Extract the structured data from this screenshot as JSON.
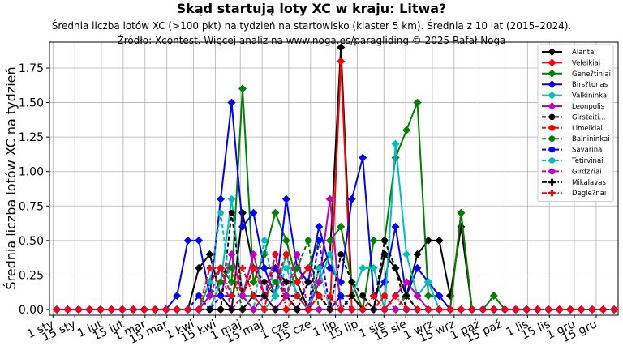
{
  "title": "Skąd startują loty XC w kraju: Litwa?",
  "subtitle_line1": "Średnia liczba lotów XC (>100 pkt) na tydzień na startowisko (klaster 5 km). Średnia z 10 lat (2015–2024).",
  "subtitle_line2": "Źródło: Xcontest. Więcej analiz na www.noga.es/paragliding © 2025 Rafał Noga",
  "chart_data": {
    "type": "line",
    "title": "Skąd startują loty XC w kraju: Litwa?",
    "xlabel": "",
    "ylabel": "Średnia liczba lotów XC na tydzień",
    "ylim": [
      -0.03,
      1.93
    ],
    "yticks": [
      0.0,
      0.25,
      0.5,
      0.75,
      1.0,
      1.25,
      1.5,
      1.75
    ],
    "ytick_labels": [
      "0.00",
      "0.25",
      "0.50",
      "0.75",
      "1.00",
      "1.25",
      "1.50",
      "1.75"
    ],
    "xtick_labels": [
      "1 sty",
      "15 sty",
      "1 lut",
      "15 lut",
      "1 mar",
      "15 mar",
      "1 kwi",
      "15 kwi",
      "1 maj",
      "15 maj",
      "1 cze",
      "15 cze",
      "1 lip",
      "15 lip",
      "1 sie",
      "15 sie",
      "1 wrz",
      "15 wrz",
      "1 paź",
      "15 paź",
      "1 lis",
      "15 lis",
      "1 gru",
      "15 gru"
    ],
    "x": "week 1..52",
    "grid": true,
    "legend_position": "upper right",
    "series": [
      {
        "name": "Alanta",
        "color": "#000000",
        "style": "solid",
        "marker": "diamond",
        "values": [
          0,
          0,
          0,
          0,
          0,
          0,
          0,
          0,
          0,
          0,
          0,
          0,
          0,
          0.3,
          0.4,
          0.1,
          0,
          0.7,
          0.3,
          0.3,
          0.3,
          0.2,
          0.2,
          0,
          0.3,
          0.4,
          1.9,
          0.1,
          0,
          0,
          0.4,
          0.3,
          0.1,
          0.4,
          0.5,
          0.5,
          0.1,
          0.6,
          0,
          0,
          0,
          0,
          0,
          0,
          0,
          0,
          0,
          0,
          0,
          0,
          0,
          0
        ]
      },
      {
        "name": "Veleikiai",
        "color": "#ff0000",
        "style": "solid",
        "marker": "diamond",
        "values": [
          0,
          0,
          0,
          0,
          0,
          0,
          0,
          0,
          0,
          0,
          0,
          0,
          0,
          0,
          0,
          0,
          0,
          0,
          0,
          0,
          0,
          0,
          0,
          0,
          0,
          0,
          1.8,
          0,
          0,
          0,
          0,
          0,
          0,
          0,
          0,
          0,
          0,
          0.7,
          0,
          0,
          0,
          0,
          0,
          0,
          0,
          0,
          0,
          0,
          0,
          0,
          0,
          0
        ]
      },
      {
        "name": "Gene?tiniai",
        "color": "#008000",
        "style": "solid",
        "marker": "diamond",
        "values": [
          0,
          0,
          0,
          0,
          0,
          0,
          0,
          0,
          0,
          0,
          0,
          0,
          0,
          0,
          0.2,
          0.3,
          0.2,
          1.6,
          0.2,
          0.4,
          0.7,
          0.5,
          0.2,
          0.3,
          0.5,
          0.5,
          0.6,
          0.2,
          0,
          0.5,
          0.5,
          1.1,
          1.3,
          1.5,
          0.1,
          0.1,
          0,
          0.7,
          0,
          0,
          0.1,
          0,
          0,
          0,
          0,
          0,
          0,
          0,
          0,
          0,
          0,
          0
        ]
      },
      {
        "name": "Birs?tonas",
        "color": "#0000ff",
        "style": "solid",
        "marker": "diamond",
        "values": [
          0,
          0,
          0,
          0,
          0,
          0,
          0,
          0,
          0,
          0,
          0,
          0.1,
          0.5,
          0.5,
          0.1,
          0.8,
          1.5,
          0.6,
          0.7,
          0.3,
          0.1,
          0.8,
          0.3,
          0.2,
          0.6,
          0.3,
          0.2,
          0.8,
          1.1,
          0.1,
          0.2,
          0.6,
          0.1,
          0.3,
          0.2,
          0.1,
          0,
          0,
          0,
          0,
          0,
          0,
          0,
          0,
          0,
          0,
          0,
          0,
          0,
          0,
          0,
          0
        ]
      },
      {
        "name": "Valkininkai",
        "color": "#00bfbf",
        "style": "solid",
        "marker": "diamond",
        "values": [
          0,
          0,
          0,
          0,
          0,
          0,
          0,
          0,
          0,
          0,
          0,
          0,
          0,
          0,
          0,
          0.2,
          0.8,
          0.1,
          0.1,
          0,
          0.1,
          0.4,
          0.1,
          0,
          0.2,
          0.4,
          0.1,
          0.1,
          0.3,
          0.3,
          0,
          1.2,
          0.4,
          0.1,
          0.2,
          0,
          0,
          0,
          0,
          0,
          0,
          0,
          0,
          0,
          0,
          0,
          0,
          0,
          0,
          0,
          0,
          0
        ]
      },
      {
        "name": "Leonpolis",
        "color": "#bf00bf",
        "style": "solid",
        "marker": "diamond",
        "values": [
          0,
          0,
          0,
          0,
          0,
          0,
          0,
          0,
          0,
          0,
          0,
          0,
          0,
          0,
          0.1,
          0.1,
          0.4,
          0.1,
          0.4,
          0.1,
          0,
          0.1,
          0,
          0,
          0.2,
          0.8,
          0,
          0,
          0,
          0,
          0,
          0.1,
          0.2,
          0.1,
          0,
          0,
          0,
          0,
          0,
          0,
          0,
          0,
          0,
          0,
          0,
          0,
          0,
          0,
          0,
          0,
          0,
          0
        ]
      },
      {
        "name": "Girsteiti...",
        "color": "#000000",
        "style": "dashed",
        "marker": "circle",
        "values": [
          0,
          0,
          0,
          0,
          0,
          0,
          0,
          0,
          0,
          0,
          0,
          0,
          0,
          0,
          0,
          0,
          0.7,
          0.1,
          0.3,
          0.2,
          0.1,
          0.1,
          0,
          0.2,
          0.1,
          0,
          0.4,
          0.2,
          0.1,
          0,
          0.5,
          0.3,
          0,
          0,
          0,
          0,
          0,
          0,
          0,
          0,
          0,
          0,
          0,
          0,
          0,
          0,
          0,
          0,
          0,
          0,
          0,
          0
        ]
      },
      {
        "name": "Limeikiai",
        "color": "#ff0000",
        "style": "dashed",
        "marker": "circle",
        "values": [
          0,
          0,
          0,
          0,
          0,
          0,
          0,
          0,
          0,
          0,
          0,
          0,
          0,
          0,
          0.2,
          0.3,
          0.3,
          0.1,
          0.3,
          0.1,
          0.2,
          0.4,
          0.2,
          0.3,
          0.1,
          0,
          0.1,
          0.1,
          0,
          0,
          0.1,
          0,
          0,
          0,
          0,
          0,
          0,
          0,
          0,
          0,
          0,
          0,
          0,
          0,
          0,
          0,
          0,
          0,
          0,
          0,
          0,
          0
        ]
      },
      {
        "name": "Balnininkai",
        "color": "#008000",
        "style": "dashed",
        "marker": "circle",
        "values": [
          0,
          0,
          0,
          0,
          0,
          0,
          0,
          0,
          0,
          0,
          0,
          0,
          0,
          0,
          0.1,
          0.2,
          0.3,
          0,
          0.1,
          0.1,
          0.2,
          0.1,
          0.3,
          0.5,
          0,
          0,
          0,
          0,
          0,
          0,
          0,
          0,
          0.1,
          0,
          0,
          0,
          0,
          0,
          0,
          0,
          0,
          0,
          0,
          0,
          0,
          0,
          0,
          0,
          0,
          0,
          0,
          0
        ]
      },
      {
        "name": "Savarina",
        "color": "#0000ff",
        "style": "dashed",
        "marker": "circle",
        "values": [
          0,
          0,
          0,
          0,
          0,
          0,
          0,
          0,
          0,
          0,
          0,
          0,
          0,
          0.1,
          0,
          0.1,
          0.1,
          0.1,
          0,
          0.1,
          0.3,
          0.1,
          0.1,
          0,
          0.5,
          0,
          0.1,
          0,
          0,
          0,
          0,
          0,
          0,
          0,
          0,
          0,
          0,
          0,
          0,
          0,
          0,
          0,
          0,
          0,
          0,
          0,
          0,
          0,
          0,
          0,
          0,
          0
        ]
      },
      {
        "name": "Tetirvinai",
        "color": "#00bfbf",
        "style": "dashed",
        "marker": "circle",
        "values": [
          0,
          0,
          0,
          0,
          0,
          0,
          0,
          0,
          0,
          0,
          0,
          0,
          0,
          0,
          0.2,
          0.7,
          0.1,
          0.1,
          0,
          0.5,
          0.1,
          0.3,
          0.1,
          0,
          0.3,
          0,
          0,
          0,
          0,
          0,
          0,
          0,
          0,
          0,
          0,
          0,
          0,
          0,
          0,
          0,
          0,
          0,
          0,
          0,
          0,
          0,
          0,
          0,
          0,
          0,
          0,
          0
        ]
      },
      {
        "name": "Girdz?iai",
        "color": "#bf00bf",
        "style": "dashed",
        "marker": "circle",
        "values": [
          0,
          0,
          0,
          0,
          0,
          0,
          0,
          0,
          0,
          0,
          0,
          0,
          0,
          0,
          0.1,
          0.3,
          0,
          0.1,
          0,
          0.1,
          0.4,
          0.1,
          0.4,
          0,
          0,
          0,
          0,
          0,
          0,
          0,
          0,
          0,
          0,
          0,
          0,
          0,
          0,
          0,
          0,
          0,
          0,
          0,
          0,
          0,
          0,
          0,
          0,
          0,
          0,
          0,
          0,
          0
        ]
      },
      {
        "name": "Mikalavas",
        "color": "#000000",
        "style": "dashdot",
        "marker": "plus",
        "values": [
          0,
          0,
          0,
          0,
          0,
          0,
          0,
          0,
          0,
          0,
          0,
          0,
          0,
          0,
          0,
          0,
          0,
          0,
          0.1,
          0.1,
          0,
          0,
          0,
          0,
          0.1,
          0,
          0,
          0.1,
          0,
          0,
          0.4,
          0.3,
          0.1,
          0,
          0,
          0,
          0,
          0,
          0,
          0,
          0,
          0,
          0,
          0,
          0,
          0,
          0,
          0,
          0,
          0,
          0,
          0
        ]
      },
      {
        "name": "Degle?nai",
        "color": "#ff0000",
        "style": "dashdot",
        "marker": "plus",
        "values": [
          0,
          0,
          0,
          0,
          0,
          0,
          0,
          0,
          0,
          0,
          0,
          0,
          0,
          0,
          0.3,
          0.3,
          0.1,
          0.3,
          0.1,
          0,
          0.4,
          0,
          0.1,
          0,
          0.1,
          0.1,
          0,
          0,
          0,
          0.1,
          0,
          0.1,
          0,
          0,
          0,
          0,
          0,
          0,
          0,
          0,
          0,
          0,
          0,
          0,
          0,
          0,
          0,
          0,
          0,
          0,
          0,
          0
        ]
      }
    ]
  }
}
